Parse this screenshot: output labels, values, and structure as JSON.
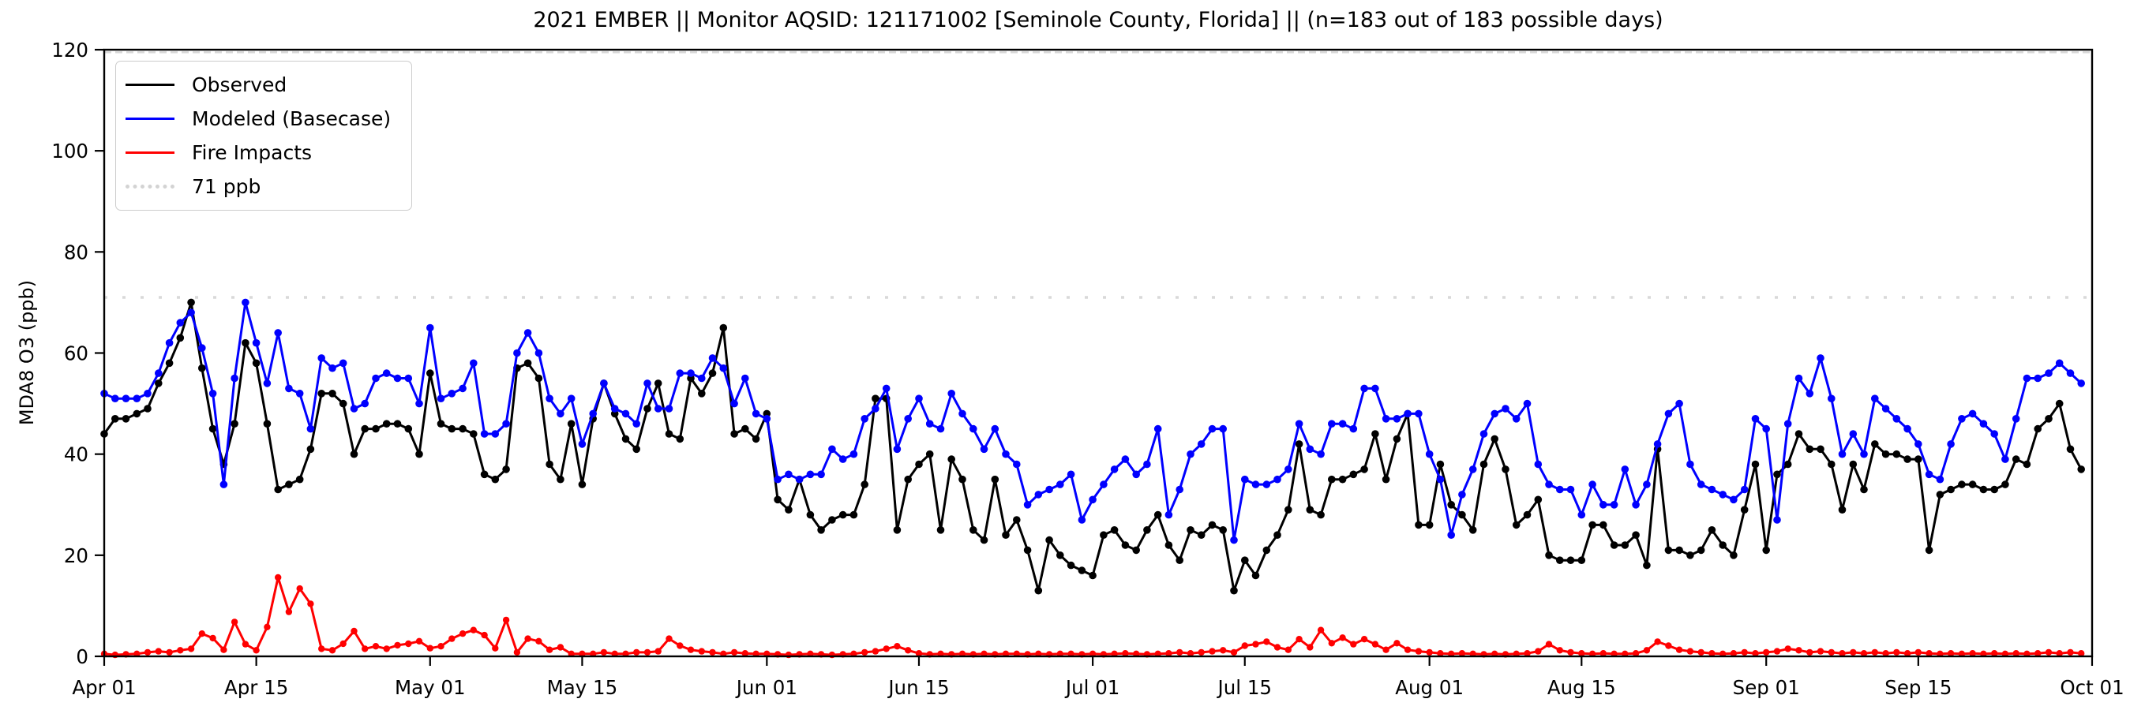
{
  "chart_data": {
    "type": "line",
    "title": "2021 EMBER || Monitor AQSID: 121171002 [Seminole County, Florida] || (n=183 out of 183 possible days)",
    "ylabel": "MDA8 O3 (ppb)",
    "xlabel": "",
    "ylim": [
      0,
      120
    ],
    "yticks": [
      0,
      20,
      40,
      60,
      80,
      100,
      120
    ],
    "x_start_date": "2021-04-01",
    "n_days": 183,
    "grid": false,
    "xticks": [
      {
        "day": 0,
        "label": "Apr 01"
      },
      {
        "day": 14,
        "label": "Apr 15"
      },
      {
        "day": 30,
        "label": "May 01"
      },
      {
        "day": 44,
        "label": "May 15"
      },
      {
        "day": 61,
        "label": "Jun 01"
      },
      {
        "day": 75,
        "label": "Jun 15"
      },
      {
        "day": 91,
        "label": "Jul 01"
      },
      {
        "day": 105,
        "label": "Jul 15"
      },
      {
        "day": 122,
        "label": "Aug 01"
      },
      {
        "day": 136,
        "label": "Aug 15"
      },
      {
        "day": 153,
        "label": "Sep 01"
      },
      {
        "day": 167,
        "label": "Sep 15"
      },
      {
        "day": 183,
        "label": "Oct 01"
      }
    ],
    "threshold": {
      "value": 71,
      "label": "71 ppb",
      "color": "#d9d9d9"
    },
    "top_reference_line": {
      "value": 119.5,
      "color": "#d9d9d9"
    },
    "legend": {
      "position": "upper-left",
      "entries": [
        {
          "label": "Observed",
          "color": "#000000",
          "style": "solid"
        },
        {
          "label": "Modeled (Basecase)",
          "color": "#0000ff",
          "style": "solid"
        },
        {
          "label": "Fire Impacts",
          "color": "#ff0000",
          "style": "solid"
        },
        {
          "label": "71 ppb",
          "color": "#d3d3d3",
          "style": "dotted"
        }
      ]
    },
    "series": [
      {
        "name": "Observed",
        "color": "#000000",
        "marker_radius": 4.8,
        "values": [
          44,
          47,
          47,
          48,
          49,
          54,
          58,
          63,
          70,
          57,
          45,
          38,
          46,
          62,
          58,
          46,
          33,
          34,
          35,
          41,
          52,
          52,
          50,
          40,
          45,
          45,
          46,
          46,
          45,
          40,
          56,
          46,
          45,
          45,
          44,
          36,
          35,
          37,
          57,
          58,
          55,
          38,
          35,
          46,
          34,
          47,
          54,
          48,
          43,
          41,
          49,
          54,
          44,
          43,
          55,
          52,
          56,
          65,
          44,
          45,
          43,
          48,
          31,
          29,
          35,
          28,
          25,
          27,
          28,
          28,
          34,
          51,
          51,
          25,
          35,
          38,
          40,
          25,
          39,
          35,
          25,
          23,
          35,
          24,
          27,
          21,
          13,
          23,
          20,
          18,
          17,
          16,
          24,
          25,
          22,
          21,
          25,
          28,
          22,
          19,
          25,
          24,
          26,
          25,
          13,
          19,
          16,
          21,
          24,
          29,
          42,
          29,
          28,
          35,
          35,
          36,
          37,
          44,
          35,
          43,
          48,
          26,
          26,
          38,
          30,
          28,
          25,
          38,
          43,
          37,
          26,
          28,
          31,
          20,
          19,
          19,
          19,
          26,
          26,
          22,
          22,
          24,
          18,
          41,
          21,
          21,
          20,
          21,
          25,
          22,
          20,
          29,
          38,
          21,
          36,
          38,
          44,
          41,
          41,
          38,
          29,
          38,
          33,
          42,
          40,
          40,
          39,
          39,
          21,
          32,
          33,
          34,
          34,
          33,
          33,
          34,
          39,
          38,
          45,
          47,
          50,
          41,
          37
        ]
      },
      {
        "name": "Modeled (Basecase)",
        "color": "#0000ff",
        "marker_radius": 4.8,
        "values": [
          52,
          51,
          51,
          51,
          52,
          56,
          62,
          66,
          68,
          61,
          52,
          34,
          55,
          70,
          62,
          54,
          64,
          53,
          52,
          45,
          59,
          57,
          58,
          49,
          50,
          55,
          56,
          55,
          55,
          50,
          65,
          51,
          52,
          53,
          58,
          44,
          44,
          46,
          60,
          64,
          60,
          51,
          48,
          51,
          42,
          48,
          54,
          49,
          48,
          46,
          54,
          49,
          49,
          56,
          56,
          55,
          59,
          57,
          50,
          55,
          48,
          47,
          35,
          36,
          35,
          36,
          36,
          41,
          39,
          40,
          47,
          49,
          53,
          41,
          47,
          51,
          46,
          45,
          52,
          48,
          45,
          41,
          45,
          40,
          38,
          30,
          32,
          33,
          34,
          36,
          27,
          31,
          34,
          37,
          39,
          36,
          38,
          45,
          28,
          33,
          40,
          42,
          45,
          45,
          23,
          35,
          34,
          34,
          35,
          37,
          46,
          41,
          40,
          46,
          46,
          45,
          53,
          53,
          47,
          47,
          48,
          48,
          40,
          35,
          24,
          32,
          37,
          44,
          48,
          49,
          47,
          50,
          38,
          34,
          33,
          33,
          28,
          34,
          30,
          30,
          37,
          30,
          34,
          42,
          48,
          50,
          38,
          34,
          33,
          32,
          31,
          33,
          47,
          45,
          27,
          46,
          55,
          52,
          59,
          51,
          40,
          44,
          40,
          51,
          49,
          47,
          45,
          42,
          36,
          35,
          42,
          47,
          48,
          46,
          44,
          39,
          47,
          55,
          55,
          56,
          58,
          56,
          54
        ]
      },
      {
        "name": "Fire Impacts",
        "color": "#ff0000",
        "marker_radius": 4.2,
        "values": [
          0.5,
          0.3,
          0.4,
          0.5,
          0.8,
          1.0,
          0.8,
          1.2,
          1.5,
          4.5,
          3.6,
          1.3,
          6.8,
          2.4,
          1.2,
          5.8,
          15.6,
          8.8,
          13.4,
          10.4,
          1.5,
          1.2,
          2.5,
          5.0,
          1.5,
          2.0,
          1.5,
          2.2,
          2.5,
          3.0,
          1.6,
          2.0,
          3.5,
          4.5,
          5.2,
          4.2,
          1.6,
          7.2,
          0.8,
          3.5,
          3.0,
          1.3,
          1.8,
          0.5,
          0.5,
          0.5,
          0.8,
          0.5,
          0.5,
          0.8,
          0.8,
          1.0,
          3.5,
          2.1,
          1.3,
          1.0,
          0.8,
          0.5,
          0.8,
          0.6,
          0.5,
          0.5,
          0.4,
          0.3,
          0.4,
          0.5,
          0.4,
          0.3,
          0.4,
          0.5,
          0.8,
          1.0,
          1.5,
          2.0,
          1.2,
          0.6,
          0.4,
          0.5,
          0.4,
          0.5,
          0.4,
          0.5,
          0.4,
          0.5,
          0.5,
          0.4,
          0.5,
          0.4,
          0.5,
          0.5,
          0.4,
          0.5,
          0.4,
          0.5,
          0.6,
          0.5,
          0.4,
          0.5,
          0.6,
          0.8,
          0.6,
          0.8,
          1.0,
          1.2,
          0.8,
          2.1,
          2.4,
          2.9,
          1.8,
          1.3,
          3.4,
          1.8,
          5.2,
          2.6,
          3.7,
          2.4,
          3.4,
          2.4,
          1.3,
          2.6,
          1.3,
          1.0,
          0.8,
          0.6,
          0.5,
          0.6,
          0.5,
          0.4,
          0.5,
          0.4,
          0.5,
          0.6,
          1.0,
          2.4,
          1.2,
          0.8,
          0.6,
          0.5,
          0.6,
          0.5,
          0.5,
          0.6,
          1.2,
          2.9,
          2.1,
          1.3,
          1.0,
          0.8,
          0.6,
          0.5,
          0.6,
          0.8,
          0.6,
          0.8,
          1.0,
          1.5,
          1.2,
          0.8,
          1.0,
          0.8,
          0.6,
          0.8,
          0.6,
          0.8,
          0.6,
          0.8,
          0.6,
          0.8,
          0.6,
          0.5,
          0.6,
          0.5,
          0.6,
          0.5,
          0.6,
          0.5,
          0.6,
          0.5,
          0.6,
          0.8,
          0.6,
          0.8,
          0.6
        ]
      }
    ]
  }
}
